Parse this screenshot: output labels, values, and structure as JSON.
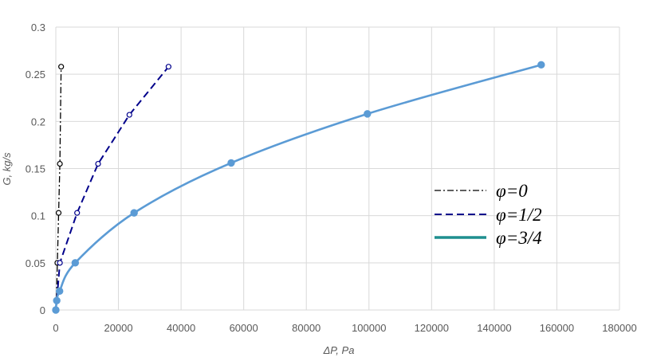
{
  "chart_data": {
    "type": "line",
    "title": "",
    "xlabel": "ΔP, Pa",
    "ylabel": "G, kg/s",
    "xlim": [
      0,
      180000
    ],
    "ylim": [
      0,
      0.3
    ],
    "xticks": [
      0,
      20000,
      40000,
      60000,
      80000,
      100000,
      120000,
      140000,
      160000,
      180000
    ],
    "yticks": [
      0,
      0.05,
      0.1,
      0.15,
      0.2,
      0.25,
      0.3
    ],
    "xtick_labels": [
      "0",
      "20000",
      "40000",
      "60000",
      "80000",
      "100000",
      "120000",
      "140000",
      "160000",
      "180000"
    ],
    "ytick_labels": [
      "0",
      "0.05",
      "0.1",
      "0.15",
      "0.2",
      "0.25",
      "0.3"
    ],
    "grid": true,
    "legend_position": "right",
    "series": [
      {
        "name": "φ=0",
        "style": "dash-dot",
        "color": "#000000",
        "marker": "open-circle",
        "x": [
          0,
          200,
          500,
          900,
          1300,
          1700
        ],
        "y": [
          0,
          0.01,
          0.05,
          0.103,
          0.155,
          0.258
        ]
      },
      {
        "name": "φ=1/2",
        "style": "dashed",
        "color": "#00008b",
        "marker": "open-circle",
        "x": [
          0,
          300,
          1300,
          6800,
          13500,
          23500,
          36000
        ],
        "y": [
          0,
          0.01,
          0.05,
          0.103,
          0.155,
          0.207,
          0.258
        ]
      },
      {
        "name": "φ=3/4",
        "style": "solid",
        "color": "#5b9bd5",
        "legend_color": "#1f8f8f",
        "marker": "filled-circle",
        "x": [
          0,
          300,
          1200,
          6200,
          25000,
          56000,
          99500,
          155000
        ],
        "y": [
          0,
          0.01,
          0.02,
          0.05,
          0.103,
          0.156,
          0.208,
          0.26
        ]
      }
    ]
  }
}
